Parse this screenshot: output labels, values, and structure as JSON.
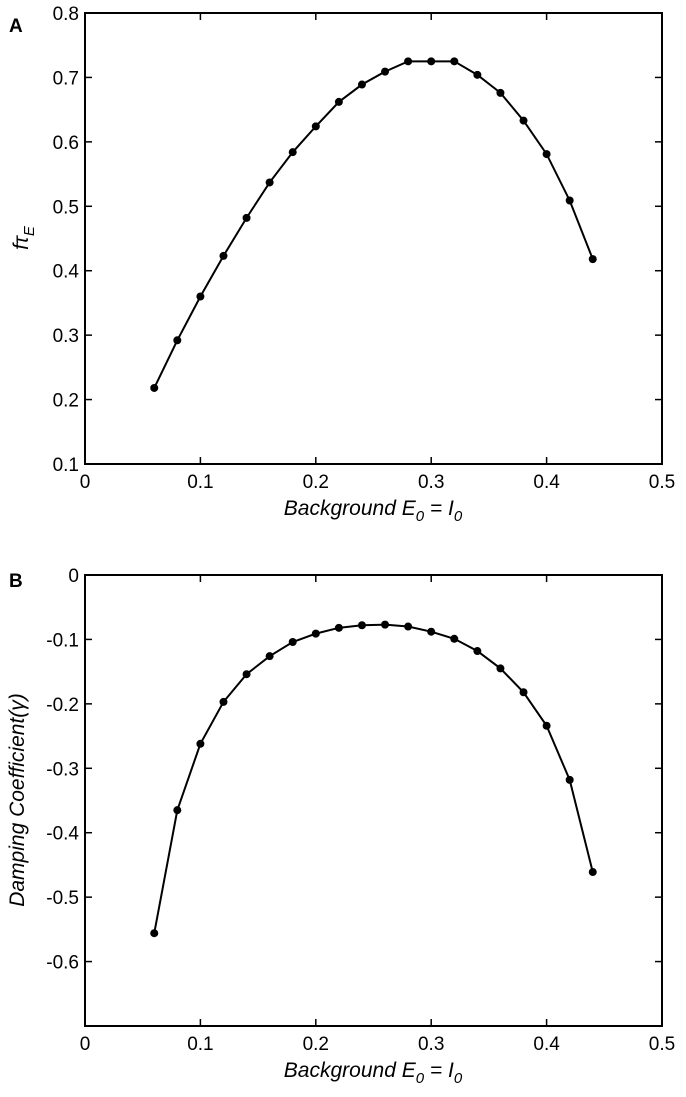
{
  "chart_data": [
    {
      "panel": "A",
      "type": "line",
      "title": "",
      "xlabel": "Background E0 = I0",
      "ylabel": "fτE",
      "xlim": [
        0,
        0.5
      ],
      "ylim": [
        0.1,
        0.8
      ],
      "xticks": [
        0,
        0.1,
        0.2,
        0.3,
        0.4,
        0.5
      ],
      "xtick_labels": [
        "0",
        "0.1",
        "0.2",
        "0.3",
        "0.4",
        "0.5"
      ],
      "yticks": [
        0.1,
        0.2,
        0.3,
        0.4,
        0.5,
        0.6,
        0.7,
        0.8
      ],
      "ytick_labels": [
        "0.1",
        "0.2",
        "0.3",
        "0.4",
        "0.5",
        "0.6",
        "0.7",
        "0.8"
      ],
      "grid": false,
      "marker": "circle",
      "color": "#000000",
      "x": [
        0.06,
        0.08,
        0.1,
        0.12,
        0.14,
        0.16,
        0.18,
        0.2,
        0.22,
        0.24,
        0.26,
        0.28,
        0.3,
        0.32,
        0.34,
        0.36,
        0.38,
        0.4,
        0.42,
        0.44
      ],
      "y": [
        0.218,
        0.292,
        0.36,
        0.423,
        0.482,
        0.537,
        0.584,
        0.624,
        0.662,
        0.689,
        0.709,
        0.725,
        0.725,
        0.725,
        0.704,
        0.676,
        0.633,
        0.581,
        0.509,
        0.418
      ]
    },
    {
      "panel": "B",
      "type": "line",
      "title": "",
      "xlabel": "Background E0 = I0",
      "ylabel": "Damping Coefficient(γ)",
      "xlim": [
        0,
        0.5
      ],
      "ylim": [
        -0.7,
        0
      ],
      "xticks": [
        0,
        0.1,
        0.2,
        0.3,
        0.4,
        0.5
      ],
      "xtick_labels": [
        "0",
        "0.1",
        "0.2",
        "0.3",
        "0.4",
        "0.5"
      ],
      "yticks": [
        0,
        -0.1,
        -0.2,
        -0.3,
        -0.4,
        -0.5,
        -0.6
      ],
      "ytick_labels": [
        "0",
        "-0.1",
        "-0.2",
        "-0.3",
        "-0.4",
        "-0.5",
        "-0.6"
      ],
      "grid": false,
      "marker": "circle",
      "color": "#000000",
      "x": [
        0.06,
        0.08,
        0.1,
        0.12,
        0.14,
        0.16,
        0.18,
        0.2,
        0.22,
        0.24,
        0.26,
        0.28,
        0.3,
        0.32,
        0.34,
        0.36,
        0.38,
        0.4,
        0.42,
        0.44
      ],
      "y": [
        -0.556,
        -0.365,
        -0.262,
        -0.197,
        -0.154,
        -0.126,
        -0.104,
        -0.091,
        -0.082,
        -0.078,
        -0.077,
        -0.08,
        -0.088,
        -0.099,
        -0.118,
        -0.145,
        -0.182,
        -0.234,
        -0.318,
        -0.461
      ]
    }
  ],
  "xlabel_parts": {
    "main": "Background E",
    "sub1": "0",
    "mid": " = I",
    "sub2": "0"
  },
  "ylabel_a_parts": {
    "main": "fτ",
    "sub": "E"
  },
  "ylabel_b": "Damping Coefficient(γ)",
  "panel_letters": [
    "A",
    "B"
  ]
}
